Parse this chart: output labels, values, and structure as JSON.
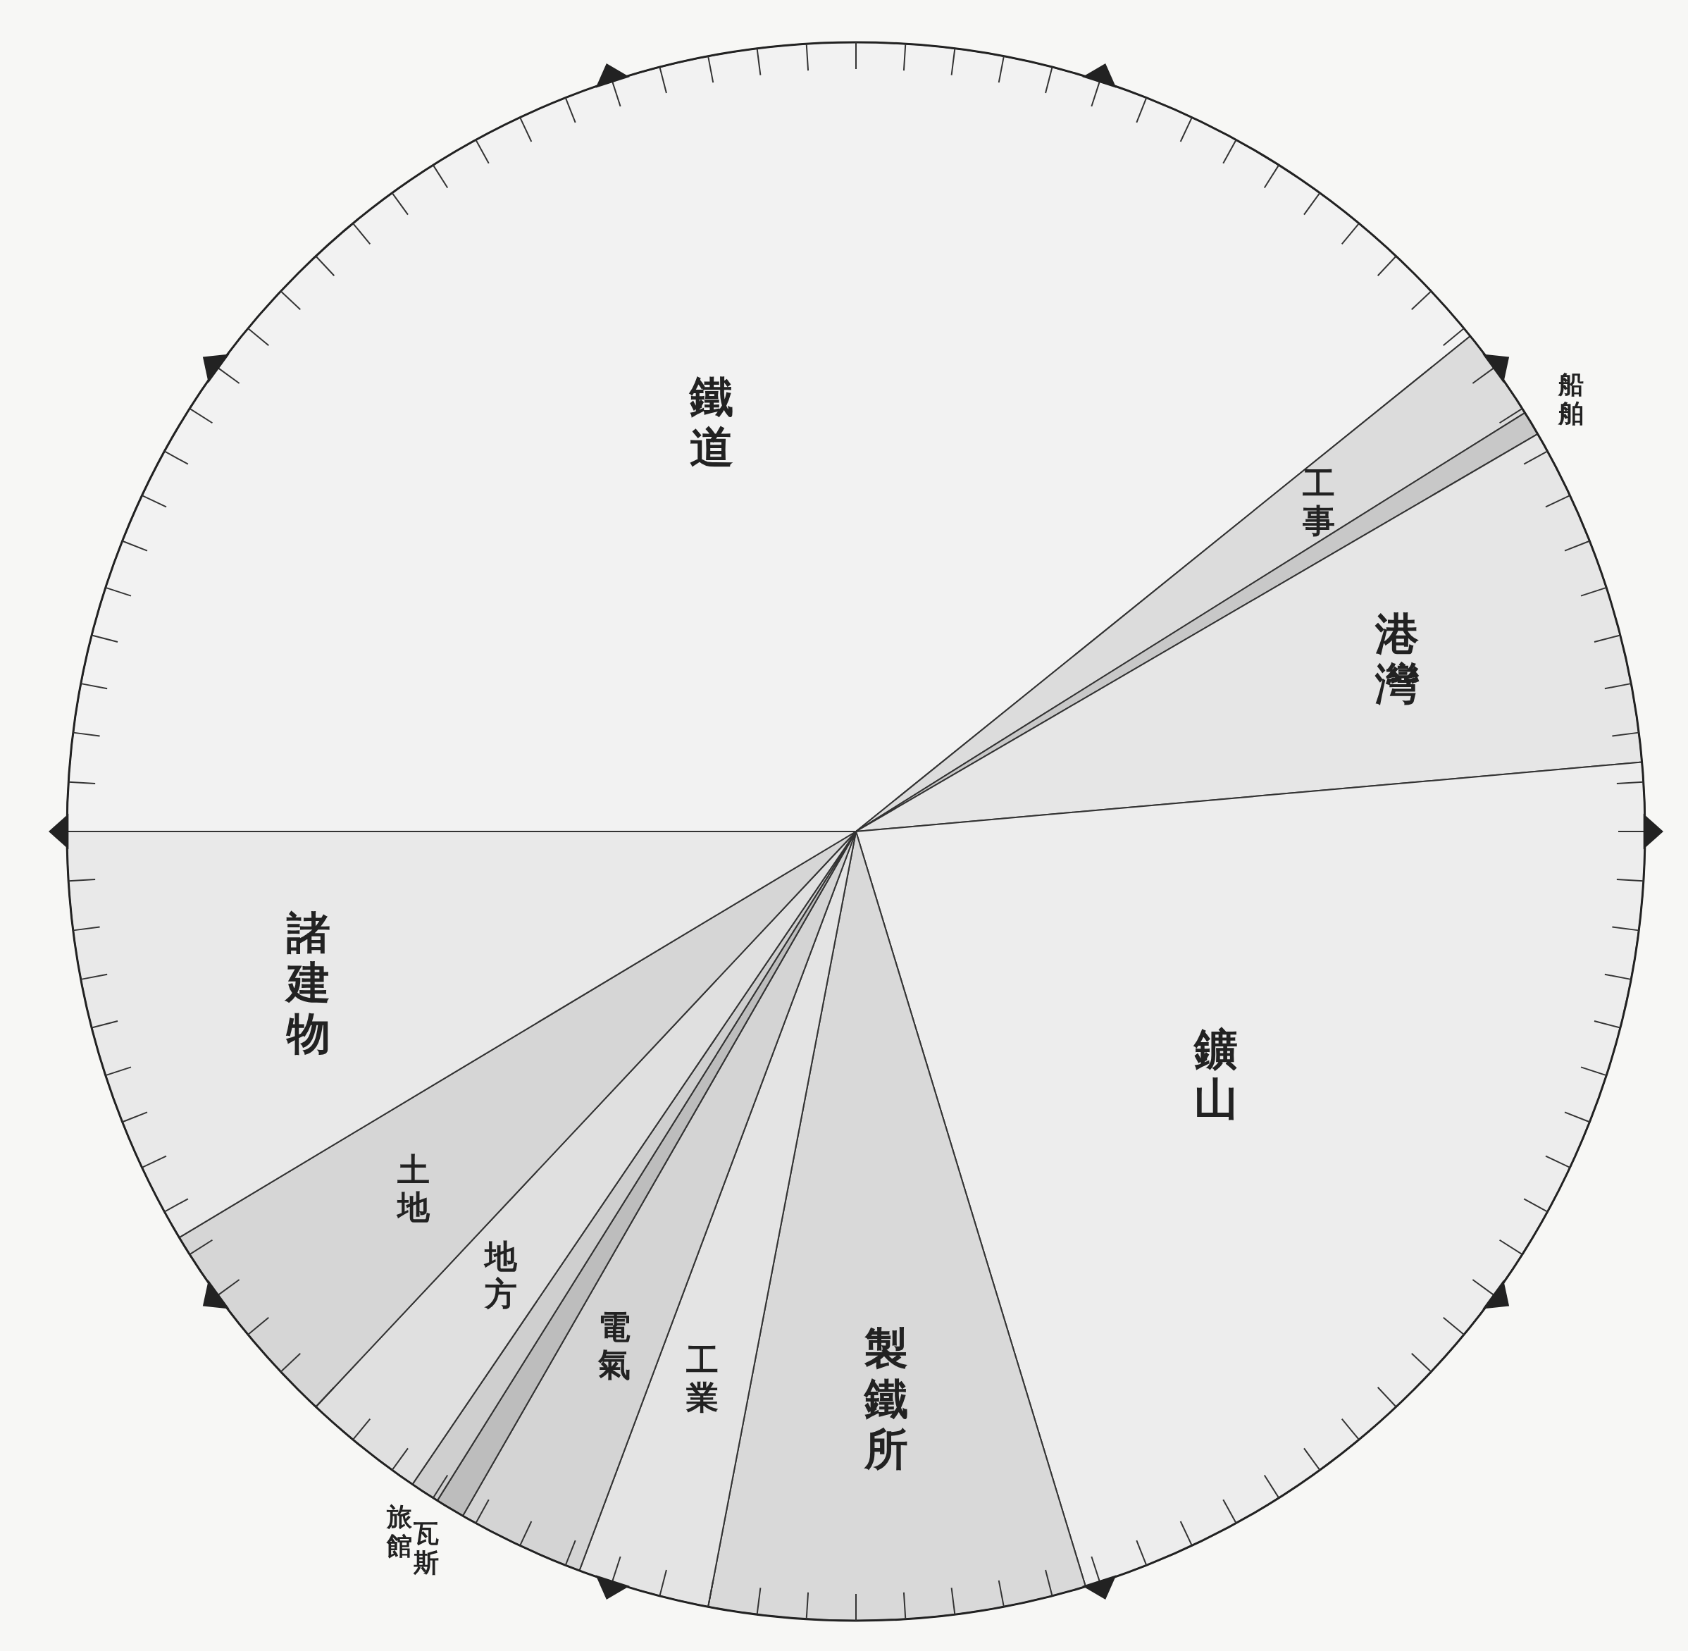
{
  "chart_data": {
    "type": "pie",
    "categories": [
      "鐵道",
      "工事",
      "船舶",
      "港灣",
      "鑛山",
      "製鐵所",
      "工業",
      "電氣",
      "瓦斯",
      "旅館",
      "地方",
      "土地",
      "諸建物"
    ],
    "values": [
      39.2,
      1.9,
      0.5,
      7.0,
      21.7,
      7.7,
      2.7,
      2.6,
      0.6,
      0.6,
      2.5,
      4.4,
      8.6
    ],
    "colors": [
      "#f2f2f2",
      "#dcdcdc",
      "#c8c8c8",
      "#e6e6e6",
      "#ededed",
      "#d9d9d9",
      "#e4e4e4",
      "#d4d4d4",
      "#bdbdbd",
      "#cfcfcf",
      "#e0e0e0",
      "#d6d6d6",
      "#e9e9e9"
    ]
  }
}
